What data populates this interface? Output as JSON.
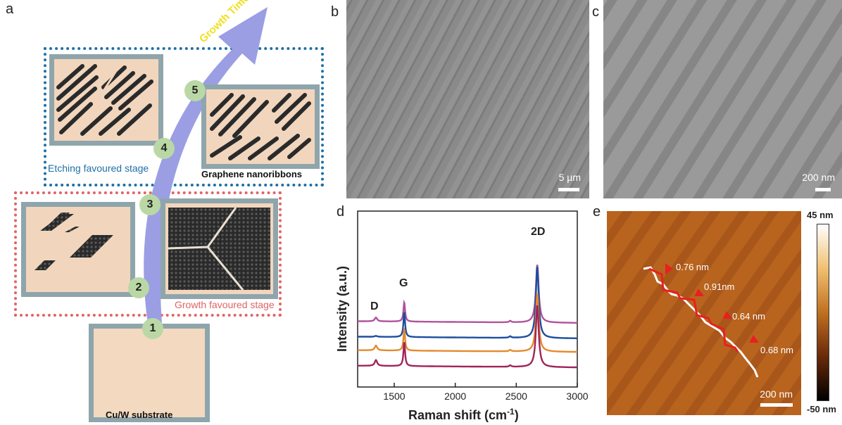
{
  "panels": {
    "a": "a",
    "b": "b",
    "c": "c",
    "d": "d",
    "e": "e"
  },
  "schematic": {
    "arrow_label": "Growth Time",
    "etching_stage": "Etching favoured stage",
    "growth_stage": "Growth favoured stage",
    "nanoribbons": "Graphene nanoribbons",
    "substrate": "Cu/W substrate",
    "steps": [
      "1",
      "2",
      "3",
      "4",
      "5"
    ],
    "colors": {
      "etching_box": "#1f6fa6",
      "growth_box": "#e06464",
      "arrow": "#9b9ee3",
      "badge": "#b9d8a5",
      "arrow_text": "#f0e020"
    }
  },
  "sem_b": {
    "scale": "5 µm"
  },
  "sem_c": {
    "scale": "200 nm"
  },
  "chart_data": {
    "type": "line",
    "xlabel": "Raman shift (cm-1)",
    "ylabel": "Intensity (a.u.)",
    "xlim": [
      1200,
      3000
    ],
    "xticks": [
      "1500",
      "2000",
      "2500",
      "3000"
    ],
    "peaks": [
      "D",
      "G",
      "2D"
    ],
    "peak_positions": [
      1350,
      1582,
      2672
    ],
    "series": [
      {
        "color": "#b0539b",
        "baseline": 0.68,
        "peaks": [
          0.04,
          0.2,
          0.6
        ]
      },
      {
        "color": "#1f4e9c",
        "baseline": 0.52,
        "peaks": [
          0.01,
          0.26,
          0.74
        ]
      },
      {
        "color": "#e58a2e",
        "baseline": 0.38,
        "peaks": [
          0.05,
          0.22,
          0.6
        ]
      },
      {
        "color": "#a0245a",
        "baseline": 0.22,
        "peaks": [
          0.06,
          0.25,
          0.64
        ]
      }
    ]
  },
  "afm": {
    "colorbar_max": "45 nm",
    "colorbar_min": "-50 nm",
    "scale": "200 nm",
    "widths": [
      "0.76 nm",
      "0.91nm",
      "0.64 nm",
      "0.68 nm"
    ]
  }
}
